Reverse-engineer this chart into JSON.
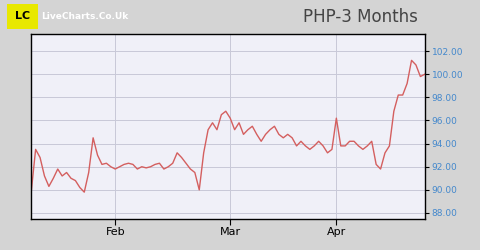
{
  "title": "PHP-3 Months",
  "title_fontsize": 12,
  "line_color": "#d45f5f",
  "bg_color": "#d4d4d4",
  "header_bg_color": "#d4d4d4",
  "plot_bg_color": "#f0f0f8",
  "grid_color": "#c8c8d8",
  "border_color": "#000000",
  "tick_color": "#000000",
  "ylabel_color": "#4488cc",
  "xlabel_color": "#555555",
  "ylim": [
    87.5,
    103.5
  ],
  "yticks": [
    88.0,
    90.0,
    92.0,
    94.0,
    96.0,
    98.0,
    100.0,
    102.0
  ],
  "xlabel_labels": [
    "Feb",
    "Mar",
    "Apr"
  ],
  "logo_text_lc": "LC",
  "logo_text_rest": "LiveCharts.Co.Uk",
  "prices": [
    89.8,
    93.5,
    92.8,
    91.2,
    90.3,
    91.0,
    91.8,
    91.2,
    91.5,
    91.0,
    90.8,
    90.2,
    89.8,
    91.5,
    94.5,
    93.0,
    92.2,
    92.3,
    92.0,
    91.8,
    92.0,
    92.2,
    92.3,
    92.2,
    91.8,
    92.0,
    91.9,
    92.0,
    92.2,
    92.3,
    91.8,
    92.0,
    92.3,
    93.2,
    92.8,
    92.3,
    91.8,
    91.5,
    90.0,
    93.2,
    95.2,
    95.8,
    95.2,
    96.5,
    96.8,
    96.2,
    95.2,
    95.8,
    94.8,
    95.2,
    95.5,
    94.8,
    94.2,
    94.8,
    95.2,
    95.5,
    94.8,
    94.5,
    94.8,
    94.5,
    93.8,
    94.2,
    93.8,
    93.5,
    93.8,
    94.2,
    93.8,
    93.2,
    93.5,
    96.2,
    93.8,
    93.8,
    94.2,
    94.2,
    93.8,
    93.5,
    93.8,
    94.2,
    92.2,
    91.8,
    93.2,
    93.8,
    96.8,
    98.2,
    98.2,
    99.2,
    101.2,
    100.8,
    99.8,
    100.0
  ],
  "feb_idx": 19,
  "mar_idx": 45,
  "apr_idx": 69
}
